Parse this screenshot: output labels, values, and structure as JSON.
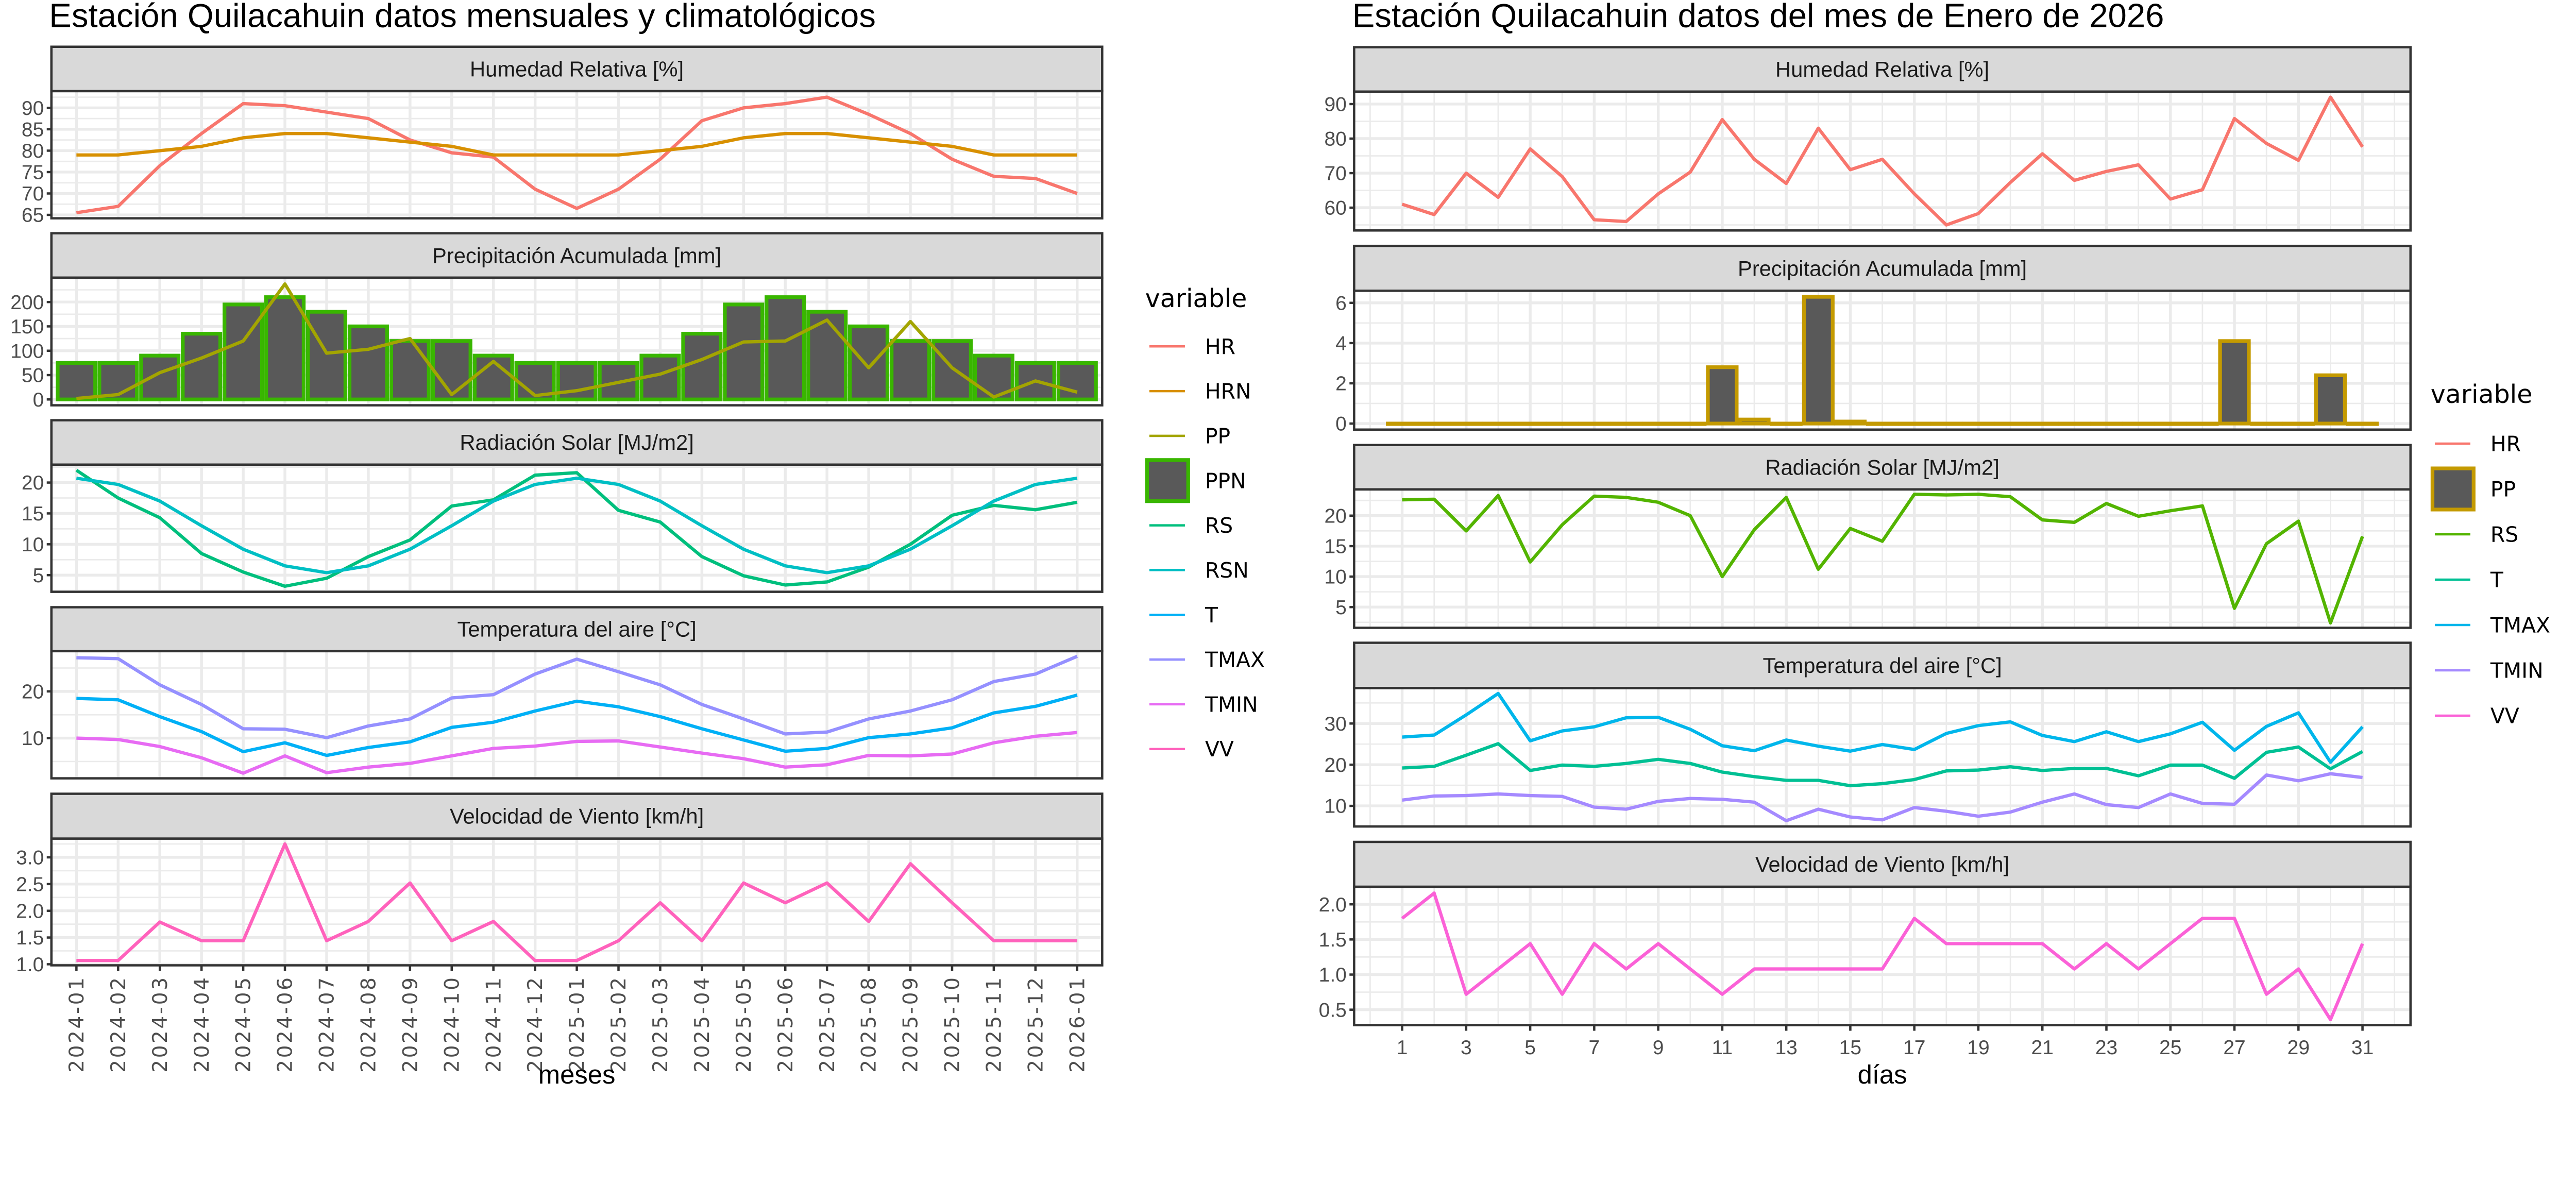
{
  "chart_data": [
    {
      "type": "line",
      "title": "Estación Quilacahuin datos mensuales y climatológicos",
      "xlabel": "meses",
      "grid": true,
      "categories": [
        "2024-01",
        "2024-02",
        "2024-03",
        "2024-04",
        "2024-05",
        "2024-06",
        "2024-07",
        "2024-08",
        "2024-09",
        "2024-10",
        "2024-11",
        "2024-12",
        "2025-01",
        "2025-02",
        "2025-03",
        "2025-04",
        "2025-05",
        "2025-06",
        "2025-07",
        "2025-08",
        "2025-09",
        "2025-10",
        "2025-11",
        "2025-12",
        "2026-01"
      ],
      "legend": {
        "title": "variable",
        "position": "right",
        "items": [
          {
            "name": "HR",
            "color": "#F8766D",
            "key": "line"
          },
          {
            "name": "HRN",
            "color": "#D89000",
            "key": "line"
          },
          {
            "name": "PP",
            "color": "#A3A500",
            "key": "line"
          },
          {
            "name": "PPN",
            "color": "#39B600",
            "fill": "#595959",
            "key": "box"
          },
          {
            "name": "RS",
            "color": "#00BF7D",
            "key": "line"
          },
          {
            "name": "RSN",
            "color": "#00BFC4",
            "key": "line"
          },
          {
            "name": "T",
            "color": "#00B0F6",
            "key": "line"
          },
          {
            "name": "TMAX",
            "color": "#9590FF",
            "key": "line"
          },
          {
            "name": "TMIN",
            "color": "#E76BF3",
            "key": "line"
          },
          {
            "name": "VV",
            "color": "#FF62BC",
            "key": "line"
          }
        ]
      },
      "facets": [
        {
          "title": "Humedad Relativa [%]",
          "ylim": [
            64.2,
            93.9
          ],
          "yticks": [
            65,
            70,
            75,
            80,
            85,
            90
          ],
          "ytick_labels": [
            "65",
            "70",
            "75",
            "80",
            "85",
            "90"
          ],
          "series": [
            {
              "name": "HR",
              "type": "line",
              "values": [
                65.5,
                67,
                76.5,
                84,
                91,
                90.5,
                89,
                87.5,
                82.5,
                79.5,
                78.5,
                71,
                66.5,
                71,
                78,
                87,
                90,
                91,
                92.5,
                88.5,
                84,
                78,
                74,
                73.5,
                70
              ]
            },
            {
              "name": "HRN",
              "type": "line",
              "values": [
                79,
                79,
                80,
                81,
                83,
                84,
                84,
                83,
                82,
                81,
                79,
                79,
                79,
                79,
                80,
                81,
                83,
                84,
                84,
                83,
                82,
                81,
                79,
                79,
                79
              ]
            }
          ]
        },
        {
          "title": "Precipitación Acumulada [mm]",
          "ylim": [
            -12,
            250
          ],
          "yticks": [
            0,
            50,
            100,
            150,
            200
          ],
          "ytick_labels": [
            "0",
            "50",
            "100",
            "150",
            "200"
          ],
          "series": [
            {
              "name": "PPN",
              "type": "bar",
              "values": [
                75,
                75,
                90,
                135,
                195,
                210,
                180,
                150,
                120,
                120,
                90,
                75,
                75,
                75,
                90,
                135,
                195,
                210,
                180,
                150,
                120,
                120,
                90,
                75,
                75
              ]
            },
            {
              "name": "PP",
              "type": "line",
              "values": [
                2,
                10,
                55,
                85,
                120,
                237,
                95,
                103,
                125,
                10,
                78,
                8,
                18,
                35,
                52,
                82,
                118,
                120,
                163,
                65,
                160,
                65,
                5,
                38,
                15
              ]
            }
          ]
        },
        {
          "title": "Radiación Solar [MJ/m2]",
          "ylim": [
            2.3,
            22.9
          ],
          "yticks": [
            5,
            10,
            15,
            20
          ],
          "ytick_labels": [
            "5",
            "10",
            "15",
            "20"
          ],
          "series": [
            {
              "name": "RS",
              "type": "line",
              "values": [
                22,
                17.5,
                14.3,
                8.5,
                5.5,
                3.2,
                4.5,
                8,
                10.7,
                16.2,
                17.2,
                21.2,
                21.6,
                15.5,
                13.6,
                8,
                4.9,
                3.4,
                3.9,
                6.3,
                10,
                14.7,
                16.3,
                15.6,
                16.8
              ]
            },
            {
              "name": "RSN",
              "type": "line",
              "values": [
                20.7,
                19.7,
                17,
                13,
                9.2,
                6.5,
                5.4,
                6.5,
                9.2,
                13,
                17,
                19.7,
                20.7,
                19.7,
                17,
                13,
                9.2,
                6.5,
                5.4,
                6.5,
                9.2,
                13,
                17,
                19.7,
                20.7
              ]
            }
          ]
        },
        {
          "title": "Temperatura del aire [°C]",
          "ylim": [
            1.4,
            28.6
          ],
          "yticks": [
            10,
            20
          ],
          "ytick_labels": [
            "10",
            "20"
          ],
          "series": [
            {
              "name": "TMAX",
              "type": "line",
              "values": [
                27.2,
                27,
                21.4,
                17.2,
                12,
                11.9,
                10.1,
                12.6,
                14.1,
                18.6,
                19.3,
                23.7,
                26.9,
                24.2,
                21.4,
                17.2,
                14.1,
                10.9,
                11.3,
                14.1,
                15.8,
                18.2,
                22.1,
                23.7,
                27.5
              ]
            },
            {
              "name": "T",
              "type": "line",
              "values": [
                18.5,
                18.2,
                14.6,
                11.4,
                7.1,
                9,
                6.3,
                8,
                9.2,
                12.3,
                13.4,
                15.8,
                17.9,
                16.7,
                14.6,
                12,
                9.6,
                7.2,
                7.8,
                10.1,
                10.9,
                12.2,
                15.4,
                16.8,
                19.2
              ]
            },
            {
              "name": "TMIN",
              "type": "line",
              "values": [
                10,
                9.7,
                8.2,
                5.8,
                2.5,
                6.2,
                2.6,
                3.8,
                4.6,
                6.2,
                7.8,
                8.3,
                9.3,
                9.4,
                8.1,
                6.8,
                5.6,
                3.8,
                4.3,
                6.3,
                6.2,
                6.6,
                9,
                10.4,
                11.2
              ]
            }
          ]
        },
        {
          "title": "Velocidad de Viento [km/h]",
          "ylim": [
            0.98,
            3.35
          ],
          "yticks": [
            1,
            1.5,
            2,
            2.5,
            3
          ],
          "ytick_labels": [
            "1.0",
            "1.5",
            "2.0",
            "2.5",
            "3.0"
          ],
          "series": [
            {
              "name": "VV",
              "type": "line",
              "values": [
                1.07,
                1.07,
                1.79,
                1.44,
                1.44,
                3.25,
                1.44,
                1.8,
                2.52,
                1.44,
                1.8,
                1.07,
                1.07,
                1.44,
                2.15,
                1.44,
                2.52,
                2.15,
                2.52,
                1.8,
                2.88,
                2.15,
                1.44,
                1.44,
                1.44
              ]
            }
          ]
        }
      ]
    },
    {
      "type": "line",
      "title": "Estación Quilacahuin datos del mes de Enero de 2026",
      "xlabel": "días",
      "grid": true,
      "x": [
        1,
        2,
        3,
        4,
        5,
        6,
        7,
        8,
        9,
        10,
        11,
        12,
        13,
        14,
        15,
        16,
        17,
        18,
        19,
        20,
        21,
        22,
        23,
        24,
        25,
        26,
        27,
        28,
        29,
        30,
        31
      ],
      "xlim": [
        -0.5,
        32.5
      ],
      "xticks": [
        1,
        3,
        5,
        7,
        9,
        11,
        13,
        15,
        17,
        19,
        21,
        23,
        25,
        27,
        29,
        31
      ],
      "xtick_labels": [
        "1",
        "3",
        "5",
        "7",
        "9",
        "11",
        "13",
        "15",
        "17",
        "19",
        "21",
        "23",
        "25",
        "27",
        "29",
        "31"
      ],
      "legend": {
        "title": "variable",
        "position": "right",
        "items": [
          {
            "name": "HR",
            "color": "#F8766D",
            "key": "line"
          },
          {
            "name": "PP",
            "color": "#C49A00",
            "fill": "#595959",
            "key": "box"
          },
          {
            "name": "RS",
            "color": "#53B400",
            "key": "line"
          },
          {
            "name": "T",
            "color": "#00C094",
            "key": "line"
          },
          {
            "name": "TMAX",
            "color": "#00B6EB",
            "key": "line"
          },
          {
            "name": "TMIN",
            "color": "#A58AFF",
            "key": "line"
          },
          {
            "name": "VV",
            "color": "#FB61D7",
            "key": "line"
          }
        ]
      },
      "facets": [
        {
          "title": "Humedad Relativa [%]",
          "ylim": [
            53.4,
            93.6
          ],
          "yticks": [
            60,
            70,
            80,
            90
          ],
          "ytick_labels": [
            "60",
            "70",
            "80",
            "90"
          ],
          "series": [
            {
              "name": "HR",
              "type": "line",
              "values": [
                61,
                58,
                70,
                63,
                77,
                69,
                56.5,
                56,
                64,
                70.3,
                85.5,
                74,
                67,
                83,
                71,
                74,
                64,
                55,
                58.3,
                67.3,
                75.6,
                67.9,
                70.5,
                72.4,
                62.5,
                65.2,
                85.8,
                78.6,
                73.7,
                92,
                77.6
              ]
            }
          ]
        },
        {
          "title": "Precipitación Acumulada [mm]",
          "ylim": [
            -0.3,
            6.6
          ],
          "yticks": [
            0,
            2,
            4,
            6
          ],
          "ytick_labels": [
            "0",
            "2",
            "4",
            "6"
          ],
          "series": [
            {
              "name": "PP",
              "type": "bar",
              "values": [
                0,
                0,
                0,
                0,
                0,
                0,
                0,
                0,
                0,
                0,
                2.8,
                0.2,
                0,
                6.3,
                0.1,
                0,
                0,
                0,
                0,
                0,
                0,
                0,
                0,
                0,
                0,
                0,
                4.1,
                0,
                0,
                2.4,
                0
              ]
            }
          ]
        },
        {
          "title": "Radiación Solar [MJ/m2]",
          "ylim": [
            1.6,
            24.3
          ],
          "yticks": [
            5,
            10,
            15,
            20
          ],
          "ytick_labels": [
            "5",
            "10",
            "15",
            "20"
          ],
          "series": [
            {
              "name": "RS",
              "type": "line",
              "values": [
                22.6,
                22.7,
                17.5,
                23.3,
                12.4,
                18.5,
                23.2,
                23,
                22.2,
                20,
                10,
                17.7,
                23,
                11.2,
                17.9,
                15.8,
                23.5,
                23.4,
                23.5,
                23.1,
                19.3,
                18.9,
                22,
                19.9,
                20.8,
                21.6,
                4.8,
                15.4,
                19.1,
                2.4,
                16.6
              ]
            }
          ]
        },
        {
          "title": "Temperatura del aire [°C]",
          "ylim": [
            5,
            38.6
          ],
          "yticks": [
            10,
            20,
            30
          ],
          "ytick_labels": [
            "10",
            "20",
            "30"
          ],
          "series": [
            {
              "name": "T",
              "type": "line",
              "values": [
                19.2,
                19.6,
                22.3,
                25.1,
                18.6,
                19.9,
                19.6,
                20.3,
                21.3,
                20.3,
                18.2,
                17.1,
                16.2,
                16.2,
                14.9,
                15.4,
                16.4,
                18.5,
                18.7,
                19.5,
                18.6,
                19.1,
                19.1,
                17.3,
                19.9,
                19.9,
                16.7,
                23,
                24.3,
                19,
                23.2
              ]
            },
            {
              "name": "TMAX",
              "type": "line",
              "values": [
                26.7,
                27.2,
                32.1,
                37.3,
                25.8,
                28.2,
                29.2,
                31.4,
                31.5,
                28.6,
                24.6,
                23.4,
                26,
                24.5,
                23.3,
                24.9,
                23.7,
                27.6,
                29.5,
                30.4,
                27.1,
                25.6,
                28,
                25.6,
                27.5,
                30.3,
                23.5,
                29.3,
                32.6,
                20.6,
                29.2
              ]
            },
            {
              "name": "TMIN",
              "type": "line",
              "values": [
                11.4,
                12.4,
                12.5,
                12.9,
                12.5,
                12.3,
                9.7,
                9.2,
                11.1,
                11.8,
                11.6,
                10.9,
                6.4,
                9.2,
                7.3,
                6.6,
                9.6,
                8.7,
                7.5,
                8.5,
                10.9,
                12.9,
                10.3,
                9.6,
                12.9,
                10.6,
                10.4,
                17.5,
                16.1,
                17.8,
                16.9
              ]
            }
          ]
        },
        {
          "title": "Velocidad de Viento [km/h]",
          "ylim": [
            0.28,
            2.25
          ],
          "yticks": [
            0.5,
            1,
            1.5,
            2
          ],
          "ytick_labels": [
            "0.5",
            "1.0",
            "1.5",
            "2.0"
          ],
          "series": [
            {
              "name": "VV",
              "type": "line",
              "values": [
                1.8,
                2.16,
                0.72,
                1.08,
                1.44,
                0.72,
                1.44,
                1.08,
                1.44,
                1.08,
                0.72,
                1.08,
                1.08,
                1.08,
                1.08,
                1.08,
                1.8,
                1.44,
                1.44,
                1.44,
                1.44,
                1.08,
                1.44,
                1.08,
                1.44,
                1.8,
                1.8,
                0.72,
                1.08,
                0.36,
                1.44
              ]
            }
          ]
        }
      ]
    }
  ]
}
